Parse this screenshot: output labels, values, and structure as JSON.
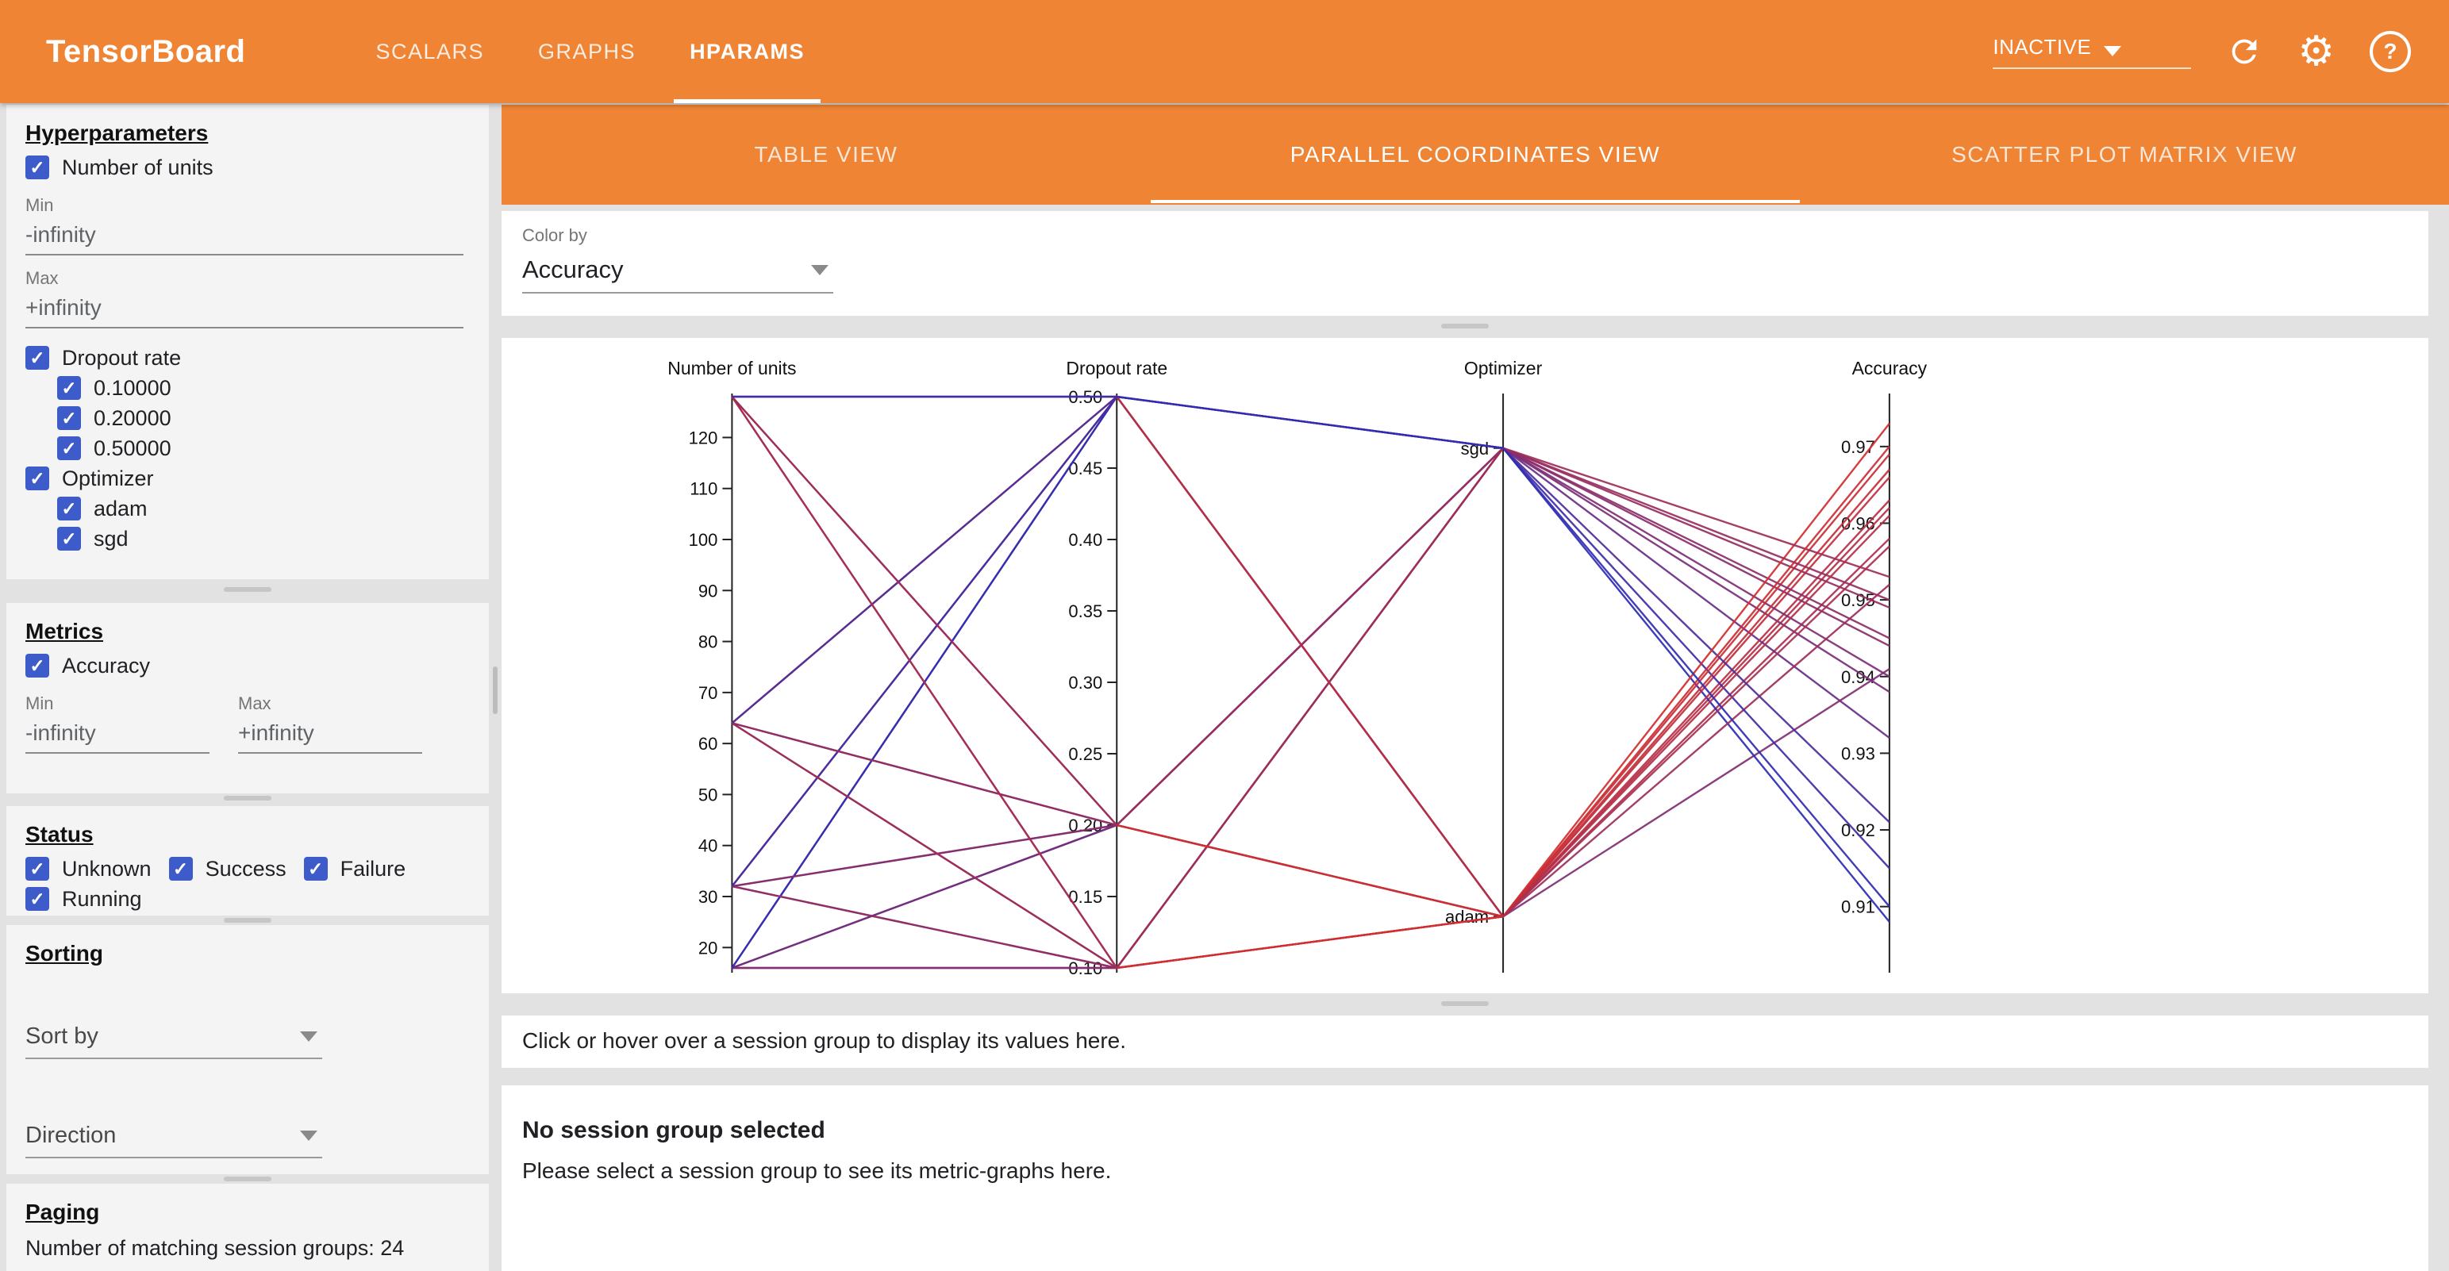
{
  "colors": {
    "orange": "#ee8434",
    "checkbox_blue": "#3d5cc9",
    "line_low": "#2d2db6",
    "line_high": "#d32f2f"
  },
  "header": {
    "title": "TensorBoard",
    "nav": [
      {
        "label": "SCALARS"
      },
      {
        "label": "GRAPHS"
      },
      {
        "label": "HPARAMS"
      }
    ],
    "active_nav": 2,
    "reload_status": "INACTIVE"
  },
  "sidebar": {
    "hyperparameters": {
      "title": "Hyperparameters",
      "number_of_units": {
        "label": "Number of units",
        "checked": true,
        "min_label": "Min",
        "min_value": "-infinity",
        "max_label": "Max",
        "max_value": "+infinity"
      },
      "dropout_rate": {
        "label": "Dropout rate",
        "checked": true,
        "options": [
          {
            "label": "0.10000"
          },
          {
            "label": "0.20000"
          },
          {
            "label": "0.50000"
          }
        ]
      },
      "optimizer": {
        "label": "Optimizer",
        "checked": true,
        "options": [
          {
            "label": "adam"
          },
          {
            "label": "sgd"
          }
        ]
      }
    },
    "metrics": {
      "title": "Metrics",
      "accuracy": {
        "label": "Accuracy",
        "checked": true
      },
      "min_label": "Min",
      "min_value": "-infinity",
      "max_label": "Max",
      "max_value": "+infinity"
    },
    "status": {
      "title": "Status",
      "options": [
        {
          "label": "Unknown"
        },
        {
          "label": "Success"
        },
        {
          "label": "Failure"
        },
        {
          "label": "Running"
        }
      ]
    },
    "sorting": {
      "title": "Sorting",
      "sort_by_label": "Sort by",
      "direction_label": "Direction"
    },
    "paging": {
      "title": "Paging",
      "summary": "Number of matching session groups: 24"
    }
  },
  "main": {
    "tabs": [
      {
        "label": "TABLE VIEW"
      },
      {
        "label": "PARALLEL COORDINATES VIEW"
      },
      {
        "label": "SCATTER PLOT MATRIX VIEW"
      }
    ],
    "active_tab": 1,
    "color_by": {
      "label": "Color by",
      "value": "Accuracy"
    },
    "hover_message": "Click or hover over a session group to display its values here.",
    "no_selection": {
      "title": "No session group selected",
      "message": "Please select a session group to see its metric-graphs here."
    }
  },
  "chart_data": {
    "type": "parallel_coordinates",
    "color_by": "Accuracy",
    "axes": [
      {
        "name": "Number of units",
        "key": "units",
        "type": "linear",
        "domain": [
          16,
          128
        ],
        "ticks": [
          20,
          30,
          40,
          50,
          60,
          70,
          80,
          90,
          100,
          110,
          120
        ]
      },
      {
        "name": "Dropout rate",
        "key": "dropout",
        "type": "linear",
        "domain": [
          0.1,
          0.5
        ],
        "ticks": [
          0.1,
          0.15,
          0.2,
          0.25,
          0.3,
          0.35,
          0.4,
          0.45,
          0.5
        ],
        "tick_decimals": 2
      },
      {
        "name": "Optimizer",
        "key": "optimizer",
        "type": "categorical",
        "categories": [
          "sgd",
          "adam"
        ]
      },
      {
        "name": "Accuracy",
        "key": "accuracy",
        "type": "linear",
        "domain": [
          0.902,
          0.9765
        ],
        "ticks": [
          0.91,
          0.92,
          0.93,
          0.94,
          0.95,
          0.96,
          0.97
        ],
        "tick_decimals": 2
      }
    ],
    "sessions": [
      {
        "units": 16,
        "dropout": 0.1,
        "optimizer": "adam",
        "accuracy": 0.962
      },
      {
        "units": 16,
        "dropout": 0.1,
        "optimizer": "sgd",
        "accuracy": 0.938
      },
      {
        "units": 16,
        "dropout": 0.2,
        "optimizer": "adam",
        "accuracy": 0.958
      },
      {
        "units": 16,
        "dropout": 0.2,
        "optimizer": "sgd",
        "accuracy": 0.932
      },
      {
        "units": 16,
        "dropout": 0.5,
        "optimizer": "adam",
        "accuracy": 0.941
      },
      {
        "units": 16,
        "dropout": 0.5,
        "optimizer": "sgd",
        "accuracy": 0.908
      },
      {
        "units": 32,
        "dropout": 0.1,
        "optimizer": "adam",
        "accuracy": 0.966
      },
      {
        "units": 32,
        "dropout": 0.1,
        "optimizer": "sgd",
        "accuracy": 0.944
      },
      {
        "units": 32,
        "dropout": 0.2,
        "optimizer": "adam",
        "accuracy": 0.963
      },
      {
        "units": 32,
        "dropout": 0.2,
        "optimizer": "sgd",
        "accuracy": 0.94
      },
      {
        "units": 32,
        "dropout": 0.5,
        "optimizer": "adam",
        "accuracy": 0.952
      },
      {
        "units": 32,
        "dropout": 0.5,
        "optimizer": "sgd",
        "accuracy": 0.915
      },
      {
        "units": 64,
        "dropout": 0.1,
        "optimizer": "adam",
        "accuracy": 0.969
      },
      {
        "units": 64,
        "dropout": 0.1,
        "optimizer": "sgd",
        "accuracy": 0.949
      },
      {
        "units": 64,
        "dropout": 0.2,
        "optimizer": "adam",
        "accuracy": 0.967
      },
      {
        "units": 64,
        "dropout": 0.2,
        "optimizer": "sgd",
        "accuracy": 0.945
      },
      {
        "units": 64,
        "dropout": 0.5,
        "optimizer": "adam",
        "accuracy": 0.957
      },
      {
        "units": 64,
        "dropout": 0.5,
        "optimizer": "sgd",
        "accuracy": 0.921
      },
      {
        "units": 128,
        "dropout": 0.1,
        "optimizer": "adam",
        "accuracy": 0.973
      },
      {
        "units": 128,
        "dropout": 0.1,
        "optimizer": "sgd",
        "accuracy": 0.953
      },
      {
        "units": 128,
        "dropout": 0.2,
        "optimizer": "adam",
        "accuracy": 0.97
      },
      {
        "units": 128,
        "dropout": 0.2,
        "optimizer": "sgd",
        "accuracy": 0.95
      },
      {
        "units": 128,
        "dropout": 0.5,
        "optimizer": "adam",
        "accuracy": 0.961
      },
      {
        "units": 128,
        "dropout": 0.5,
        "optimizer": "sgd",
        "accuracy": 0.91
      }
    ]
  }
}
